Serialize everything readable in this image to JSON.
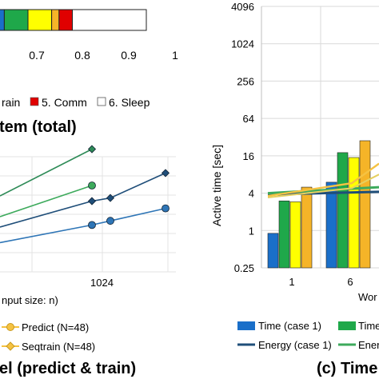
{
  "chart_data": [
    {
      "type": "bar",
      "name": "stacked-ratio-bar",
      "orientation": "horizontal",
      "segments_visible": [
        {
          "color": "#1a6fc9",
          "width": 0.02
        },
        {
          "color": "#1fa84a",
          "width": 0.08
        },
        {
          "color": "#ffff00",
          "width": 0.08
        },
        {
          "color": "#f5b428",
          "width": 0.025
        },
        {
          "color": "#e00000",
          "width": 0.045
        },
        {
          "color": "#ffffff",
          "width": 0.25
        }
      ],
      "x_ticks": [
        "0.7",
        "0.8",
        "0.9",
        "1"
      ],
      "xlim": [
        0.6,
        1.0
      ],
      "legend": [
        {
          "label": "rain",
          "color": null
        },
        {
          "label": "5. Comm",
          "color": "#e00000"
        },
        {
          "label": "6. Sleep",
          "color": "#ffffff"
        }
      ],
      "caption": "tem (total)"
    },
    {
      "type": "line",
      "name": "model-predict-train",
      "x_label": "nput size: n)",
      "x_tick": "1024",
      "series": [
        {
          "name": "Seqtrain (N=48)",
          "color": "#2e8b57",
          "marker": "diamond",
          "points": [
            [
              0.0,
              0.5
            ],
            [
              0.5,
              0.95
            ]
          ]
        },
        {
          "name": "Predict (N=48)",
          "color": "#3daa5c",
          "marker": "circle",
          "points": [
            [
              0.0,
              0.3
            ],
            [
              0.5,
              0.6
            ]
          ]
        },
        {
          "name": "",
          "color": "#1f4e79",
          "marker": "diamond",
          "points": [
            [
              0.0,
              0.2
            ],
            [
              0.5,
              0.45
            ],
            [
              0.6,
              0.48
            ],
            [
              0.9,
              0.72
            ]
          ]
        },
        {
          "name": "",
          "color": "#2e75b6",
          "marker": "circle",
          "points": [
            [
              0.0,
              0.05
            ],
            [
              0.5,
              0.22
            ],
            [
              0.6,
              0.26
            ],
            [
              0.9,
              0.38
            ]
          ]
        }
      ],
      "legend": [
        {
          "label": "Predict (N=48)",
          "color": "#f5c242",
          "marker": "circle"
        },
        {
          "label": "Seqtrain (N=48)",
          "color": "#f5c242",
          "marker": "diamond"
        }
      ],
      "caption": "el (predict & train)"
    },
    {
      "type": "bar",
      "name": "active-time",
      "y_label": "Active time [sec]",
      "y_scale": "log2",
      "y_ticks": [
        "0.25",
        "1",
        "4",
        "16",
        "64",
        "256",
        "1024",
        "4096"
      ],
      "ylim": [
        0.25,
        4096
      ],
      "categories": [
        "1",
        "6"
      ],
      "x_label": "Wor",
      "series": [
        {
          "name": "Time (case 1)",
          "color": "#1a6fc9",
          "values": [
            0.9,
            6
          ]
        },
        {
          "name": "Time",
          "color": "#1fa84a",
          "values": [
            3,
            18
          ]
        },
        {
          "name": "",
          "color": "#ffff00",
          "values": [
            2.9,
            15
          ]
        },
        {
          "name": "",
          "color": "#f5b428",
          "values": [
            5,
            28
          ]
        }
      ],
      "lines": [
        {
          "name": "Energy (case 1)",
          "color": "#1f4e79",
          "values": [
            3.8,
            4.2
          ]
        },
        {
          "name": "Energy",
          "color": "#3daa5c",
          "values": [
            4.0,
            5.0
          ]
        }
      ],
      "caption": "(c) Time"
    }
  ]
}
